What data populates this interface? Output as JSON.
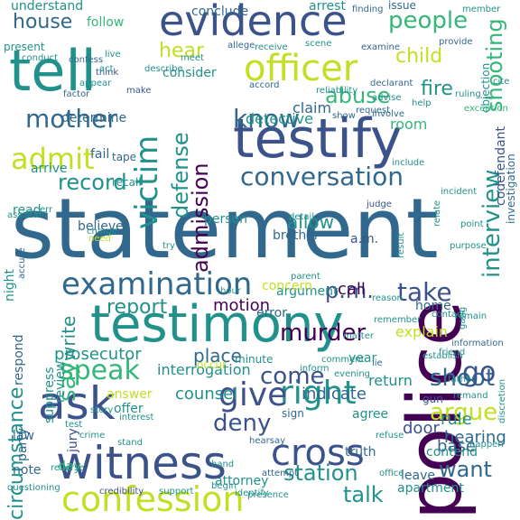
{
  "palette": {
    "dark_purple": "#440154",
    "indigo": "#3b528b",
    "blue": "#31688e",
    "teal": "#21918c",
    "green": "#35b779",
    "lime": "#90d743",
    "yellow": "#c2df23"
  },
  "words": [
    {
      "text": "statement",
      "color": "blue"
    },
    {
      "text": "testify",
      "color": "indigo"
    },
    {
      "text": "testimony",
      "color": "teal"
    },
    {
      "text": "police",
      "color": "dark_purple"
    },
    {
      "text": "witness",
      "color": "indigo"
    },
    {
      "text": "tell",
      "color": "teal"
    },
    {
      "text": "evidence",
      "color": "indigo"
    },
    {
      "text": "officer",
      "color": "yellow"
    },
    {
      "text": "interview",
      "color": "teal"
    },
    {
      "text": "ask",
      "color": "indigo"
    },
    {
      "text": "confession",
      "color": "yellow"
    },
    {
      "text": "examination",
      "color": "blue"
    },
    {
      "text": "cross",
      "color": "indigo"
    },
    {
      "text": "right",
      "color": "teal"
    },
    {
      "text": "give",
      "color": "indigo"
    },
    {
      "text": "victim",
      "color": "teal"
    },
    {
      "text": "conversation",
      "color": "blue"
    },
    {
      "text": "admit",
      "color": "yellow"
    },
    {
      "text": "murder",
      "color": "dark_purple"
    },
    {
      "text": "speak",
      "color": "green"
    },
    {
      "text": "mother",
      "color": "blue"
    },
    {
      "text": "people",
      "color": "green"
    },
    {
      "text": "know",
      "color": "blue"
    },
    {
      "text": "abuse",
      "color": "green"
    },
    {
      "text": "shooting",
      "color": "green"
    },
    {
      "text": "record",
      "color": "teal"
    },
    {
      "text": "defense",
      "color": "teal"
    },
    {
      "text": "admission",
      "color": "dark_purple"
    },
    {
      "text": "report",
      "color": "teal"
    },
    {
      "text": "take",
      "color": "indigo"
    },
    {
      "text": "argue",
      "color": "yellow"
    },
    {
      "text": "station",
      "color": "teal"
    },
    {
      "text": "talk",
      "color": "teal"
    },
    {
      "text": "say",
      "color": "green"
    },
    {
      "text": "come",
      "color": "indigo"
    },
    {
      "text": "deny",
      "color": "indigo"
    },
    {
      "text": "shoot",
      "color": "blue"
    },
    {
      "text": "go",
      "color": "indigo"
    },
    {
      "text": "want",
      "color": "blue"
    },
    {
      "text": "circumstance",
      "color": "teal"
    },
    {
      "text": "house",
      "color": "blue"
    },
    {
      "text": "hear",
      "color": "yellow"
    },
    {
      "text": "child",
      "color": "yellow"
    },
    {
      "text": "fire",
      "color": "teal"
    },
    {
      "text": "p.m.",
      "color": "indigo"
    },
    {
      "text": "allow",
      "color": "teal"
    },
    {
      "text": "motion",
      "color": "dark_purple"
    },
    {
      "text": "write",
      "color": "teal"
    },
    {
      "text": "call",
      "color": "dark_purple"
    },
    {
      "text": "indicate",
      "color": "blue"
    },
    {
      "text": "hearing",
      "color": "blue"
    },
    {
      "text": "interrogation",
      "color": "teal"
    },
    {
      "text": "counsel",
      "color": "teal"
    },
    {
      "text": "explain",
      "color": "yellow"
    },
    {
      "text": "prosecutor",
      "color": "teal"
    },
    {
      "text": "place",
      "color": "blue"
    },
    {
      "text": "rule",
      "color": "teal"
    },
    {
      "text": "door",
      "color": "indigo"
    },
    {
      "text": "base",
      "color": "blue"
    },
    {
      "text": "return",
      "color": "teal"
    },
    {
      "text": "room",
      "color": "green"
    },
    {
      "text": "claim",
      "color": "blue"
    },
    {
      "text": "detective",
      "color": "teal"
    },
    {
      "text": "consider",
      "color": "teal"
    },
    {
      "text": "determine",
      "color": "blue"
    },
    {
      "text": "understand",
      "color": "teal"
    },
    {
      "text": "conclude",
      "color": "blue"
    },
    {
      "text": "arrest",
      "color": "teal"
    },
    {
      "text": "issue",
      "color": "blue"
    },
    {
      "text": "follow",
      "color": "green"
    },
    {
      "text": "fail",
      "color": "blue"
    },
    {
      "text": "arrive",
      "color": "teal"
    },
    {
      "text": "believe",
      "color": "blue"
    },
    {
      "text": "person",
      "color": "teal"
    },
    {
      "text": "brother",
      "color": "blue"
    },
    {
      "text": "argument",
      "color": "teal"
    },
    {
      "text": "a.m.",
      "color": "indigo"
    },
    {
      "text": "concern",
      "color": "yellow"
    },
    {
      "text": "error",
      "color": "blue"
    },
    {
      "text": "review",
      "color": "teal"
    },
    {
      "text": "suppress",
      "color": "teal"
    },
    {
      "text": "jury",
      "color": "indigo"
    },
    {
      "text": "answer",
      "color": "yellow"
    },
    {
      "text": "offer",
      "color": "teal"
    },
    {
      "text": "party",
      "color": "blue"
    },
    {
      "text": "day",
      "color": "green"
    },
    {
      "text": "note",
      "color": "blue"
    },
    {
      "text": "minute",
      "color": "teal"
    },
    {
      "text": "occur",
      "color": "yellow"
    },
    {
      "text": "sign",
      "color": "blue"
    },
    {
      "text": "agree",
      "color": "teal"
    },
    {
      "text": "year",
      "color": "teal"
    },
    {
      "text": "home",
      "color": "blue"
    },
    {
      "text": "apartment",
      "color": "teal"
    },
    {
      "text": "leave",
      "color": "blue"
    },
    {
      "text": "contend",
      "color": "teal"
    },
    {
      "text": "truth",
      "color": "blue"
    },
    {
      "text": "attorney",
      "color": "teal"
    },
    {
      "text": "law",
      "color": "blue"
    },
    {
      "text": "night",
      "color": "teal"
    },
    {
      "text": "respond",
      "color": "blue"
    },
    {
      "text": "read",
      "color": "teal"
    },
    {
      "text": "tape",
      "color": "blue"
    },
    {
      "text": "recall",
      "color": "teal"
    },
    {
      "text": "present",
      "color": "teal"
    },
    {
      "text": "confess",
      "color": "blue"
    },
    {
      "text": "make",
      "color": "indigo"
    },
    {
      "text": "think",
      "color": "indigo"
    },
    {
      "text": "gun",
      "color": "indigo"
    },
    {
      "text": "codefendant",
      "color": "indigo"
    },
    {
      "text": "objection",
      "color": "teal"
    },
    {
      "text": "investigation",
      "color": "blue"
    },
    {
      "text": "credibility",
      "color": "indigo"
    },
    {
      "text": "support",
      "color": "teal"
    },
    {
      "text": "presence",
      "color": "teal"
    },
    {
      "text": "questioning",
      "color": "teal"
    },
    {
      "text": "hearsay",
      "color": "blue"
    },
    {
      "text": "interest",
      "color": "teal"
    },
    {
      "text": "story",
      "color": "teal"
    },
    {
      "text": "evening",
      "color": "teal"
    },
    {
      "text": "remember",
      "color": "teal"
    },
    {
      "text": "contact",
      "color": "teal"
    },
    {
      "text": "friend",
      "color": "teal"
    },
    {
      "text": "father",
      "color": "teal"
    },
    {
      "text": "gang",
      "color": "teal"
    },
    {
      "text": "purpose",
      "color": "teal"
    },
    {
      "text": "point",
      "color": "teal"
    },
    {
      "text": "include",
      "color": "teal"
    },
    {
      "text": "detail",
      "color": "teal"
    },
    {
      "text": "judge",
      "color": "indigo"
    },
    {
      "text": "show",
      "color": "blue"
    },
    {
      "text": "request",
      "color": "blue"
    },
    {
      "text": "involve",
      "color": "blue"
    },
    {
      "text": "help",
      "color": "teal"
    },
    {
      "text": "exception",
      "color": "green"
    },
    {
      "text": "ruling",
      "color": "teal"
    },
    {
      "text": "provide",
      "color": "blue"
    },
    {
      "text": "member",
      "color": "teal"
    },
    {
      "text": "finding",
      "color": "blue"
    },
    {
      "text": "meet",
      "color": "teal"
    },
    {
      "text": "allege",
      "color": "blue"
    },
    {
      "text": "receive",
      "color": "teal"
    },
    {
      "text": "scene",
      "color": "teal"
    },
    {
      "text": "examine",
      "color": "blue"
    },
    {
      "text": "accord",
      "color": "blue"
    },
    {
      "text": "declarant",
      "color": "blue"
    },
    {
      "text": "advise",
      "color": "teal"
    },
    {
      "text": "describe",
      "color": "teal"
    },
    {
      "text": "appear",
      "color": "teal"
    },
    {
      "text": "factor",
      "color": "blue"
    },
    {
      "text": "live",
      "color": "teal"
    },
    {
      "text": "act",
      "color": "teal"
    },
    {
      "text": "conduct",
      "color": "teal"
    },
    {
      "text": "accuse",
      "color": "blue"
    },
    {
      "text": "assistant",
      "color": "teal"
    },
    {
      "text": "err",
      "color": "teal"
    },
    {
      "text": "charge",
      "color": "teal"
    },
    {
      "text": "need",
      "color": "yellow"
    },
    {
      "text": "try",
      "color": "teal"
    },
    {
      "text": "reliability",
      "color": "teal"
    },
    {
      "text": "relate",
      "color": "teal"
    },
    {
      "text": "incident",
      "color": "teal"
    },
    {
      "text": "result",
      "color": "teal"
    },
    {
      "text": "inform",
      "color": "teal"
    },
    {
      "text": "information",
      "color": "blue"
    },
    {
      "text": "matter",
      "color": "teal"
    },
    {
      "text": "remain",
      "color": "teal"
    },
    {
      "text": "lie",
      "color": "blue"
    },
    {
      "text": "comment",
      "color": "teal"
    },
    {
      "text": "establish",
      "color": "teal"
    },
    {
      "text": "refuse",
      "color": "teal"
    },
    {
      "text": "remand",
      "color": "teal"
    },
    {
      "text": "happen",
      "color": "teal"
    },
    {
      "text": "stand",
      "color": "teal"
    },
    {
      "text": "hand",
      "color": "teal"
    },
    {
      "text": "begin",
      "color": "teal"
    },
    {
      "text": "reverse",
      "color": "teal"
    },
    {
      "text": "attempt",
      "color": "blue"
    },
    {
      "text": "identify",
      "color": "teal"
    },
    {
      "text": "office",
      "color": "teal"
    },
    {
      "text": "reason",
      "color": "teal"
    },
    {
      "text": "parent",
      "color": "teal"
    },
    {
      "text": "hour",
      "color": "teal"
    },
    {
      "text": "test",
      "color": "teal"
    },
    {
      "text": "crime",
      "color": "teal"
    },
    {
      "text": "discretion",
      "color": "teal"
    },
    {
      "text": "cite",
      "color": "teal"
    },
    {
      "text": "wife",
      "color": "teal"
    },
    {
      "text": "waive",
      "color": "teal"
    },
    {
      "text": "run",
      "color": "teal"
    },
    {
      "text": "bee",
      "color": "teal"
    }
  ]
}
